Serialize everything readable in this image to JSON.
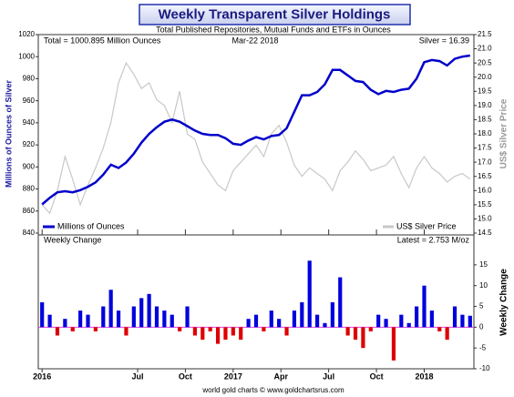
{
  "chart_data": [
    {
      "type": "line",
      "title": "Weekly Transparent Silver Holdings",
      "subtitle": "Total Published Repositories, Mutual Funds and ETFs in Ounces",
      "annotations": [
        "Total = 1000.895 Million Ounces",
        "Mar-22 2018",
        "Silver = 16.39"
      ],
      "ylabel": "Millions of Ounces of Silver",
      "y2label": "US$ Silver Price",
      "x": [
        2016.0,
        2016.04,
        2016.08,
        2016.12,
        2016.16,
        2016.2,
        2016.24,
        2016.28,
        2016.32,
        2016.36,
        2016.4,
        2016.44,
        2016.48,
        2016.52,
        2016.56,
        2016.6,
        2016.64,
        2016.68,
        2016.72,
        2016.76,
        2016.8,
        2016.84,
        2016.88,
        2016.92,
        2016.96,
        2017.0,
        2017.04,
        2017.08,
        2017.12,
        2017.16,
        2017.2,
        2017.24,
        2017.28,
        2017.32,
        2017.36,
        2017.4,
        2017.44,
        2017.48,
        2017.52,
        2017.56,
        2017.6,
        2017.64,
        2017.68,
        2017.72,
        2017.76,
        2017.8,
        2017.84,
        2017.88,
        2017.92,
        2017.96,
        2018.0,
        2018.04,
        2018.08,
        2018.12,
        2018.16,
        2018.2,
        2018.24
      ],
      "xlim": [
        2015.98,
        2018.26
      ],
      "ylim": [
        840,
        1020
      ],
      "yticks": [
        840,
        860,
        880,
        900,
        920,
        940,
        960,
        980,
        1000,
        1020
      ],
      "y2lim": [
        14.5,
        21.5
      ],
      "y2ticks": [
        14.5,
        {
          "value": 15,
          "label": "15.0"
        },
        15.5,
        {
          "value": 16,
          "label": "16.0"
        },
        16.5,
        {
          "value": 17,
          "label": "17.0"
        },
        17.5,
        {
          "value": 18,
          "label": "18.0"
        },
        18.5,
        {
          "value": 19,
          "label": "19.0"
        },
        19.5,
        {
          "value": 20,
          "label": "20.0"
        },
        20.5,
        {
          "value": 21,
          "label": "21.0"
        },
        21.5
      ],
      "series": [
        {
          "name": "Millions of Ounces",
          "color": "#0000cc",
          "values": [
            866,
            872,
            877,
            878,
            877,
            879,
            882,
            886,
            893,
            902,
            899,
            904,
            912,
            922,
            930,
            936,
            941,
            943,
            941,
            937,
            933,
            930,
            929,
            929,
            926,
            921,
            920,
            924,
            927,
            925,
            928,
            929,
            935,
            950,
            965,
            965,
            968,
            975,
            988,
            988,
            983,
            978,
            977,
            970,
            966,
            969,
            968,
            970,
            971,
            980,
            995,
            997,
            996,
            992,
            998,
            1000,
            1001
          ]
        },
        {
          "name": "US$ Silver Price",
          "color": "#c8c8c8",
          "axis": "y2",
          "values": [
            15.5,
            15.2,
            16.0,
            17.2,
            16.4,
            15.5,
            16.2,
            16.8,
            17.5,
            18.4,
            19.8,
            20.5,
            20.1,
            19.6,
            19.8,
            19.2,
            19.0,
            18.4,
            19.5,
            18.0,
            17.8,
            17.0,
            16.6,
            16.2,
            16.0,
            16.7,
            17.0,
            17.3,
            17.6,
            17.2,
            18.0,
            18.3,
            17.7,
            16.9,
            16.5,
            16.8,
            16.6,
            16.4,
            16.0,
            16.7,
            17.0,
            17.4,
            17.1,
            16.7,
            16.8,
            16.9,
            17.2,
            16.6,
            16.1,
            16.8,
            17.2,
            16.8,
            16.6,
            16.3,
            16.5,
            16.6,
            16.4
          ]
        }
      ]
    },
    {
      "type": "bar",
      "label": "Weekly Change",
      "annotation": "Latest = 2.753 M/oz",
      "ylabel": "Weekly Change",
      "source": "world gold charts © www.goldchartsrus.com",
      "x": [
        2016.0,
        2016.04,
        2016.08,
        2016.12,
        2016.16,
        2016.2,
        2016.24,
        2016.28,
        2016.32,
        2016.36,
        2016.4,
        2016.44,
        2016.48,
        2016.52,
        2016.56,
        2016.6,
        2016.64,
        2016.68,
        2016.72,
        2016.76,
        2016.8,
        2016.84,
        2016.88,
        2016.92,
        2016.96,
        2017.0,
        2017.04,
        2017.08,
        2017.12,
        2017.16,
        2017.2,
        2017.24,
        2017.28,
        2017.32,
        2017.36,
        2017.4,
        2017.44,
        2017.48,
        2017.52,
        2017.56,
        2017.6,
        2017.64,
        2017.68,
        2017.72,
        2017.76,
        2017.8,
        2017.84,
        2017.88,
        2017.92,
        2017.96,
        2018.0,
        2018.04,
        2018.08,
        2018.12,
        2018.16,
        2018.2,
        2018.24
      ],
      "xlim": [
        2015.98,
        2018.26
      ],
      "xticks": [
        {
          "value": 2016,
          "label": "2016"
        },
        {
          "value": 2016.5,
          "label": "Jul"
        },
        {
          "value": 2016.75,
          "label": "Oct"
        },
        {
          "value": 2017,
          "label": "2017"
        },
        {
          "value": 2017.25,
          "label": "Apr"
        },
        {
          "value": 2017.5,
          "label": "Jul"
        },
        {
          "value": 2017.75,
          "label": "Oct"
        },
        {
          "value": 2018,
          "label": "2018"
        }
      ],
      "ylim": [
        -10,
        22.2
      ],
      "yticks": [
        -10,
        -5,
        0,
        5,
        10,
        15
      ],
      "color_positive": "#0000dd",
      "color_negative": "#dd0000",
      "values": [
        6,
        3,
        -2,
        2,
        -1,
        4,
        3,
        -1,
        5,
        9,
        4,
        -2,
        5,
        7,
        8,
        5,
        4,
        3,
        -1,
        5,
        -2,
        -3,
        -1,
        -4,
        -3,
        -2,
        -3,
        2,
        3,
        -1,
        4,
        2,
        -2,
        4,
        6,
        16,
        3,
        1,
        6,
        12,
        -2,
        -3,
        -5,
        -1,
        3,
        2,
        -8,
        3,
        1,
        5,
        10,
        4,
        -1,
        -3,
        5,
        3,
        2.753
      ]
    }
  ]
}
